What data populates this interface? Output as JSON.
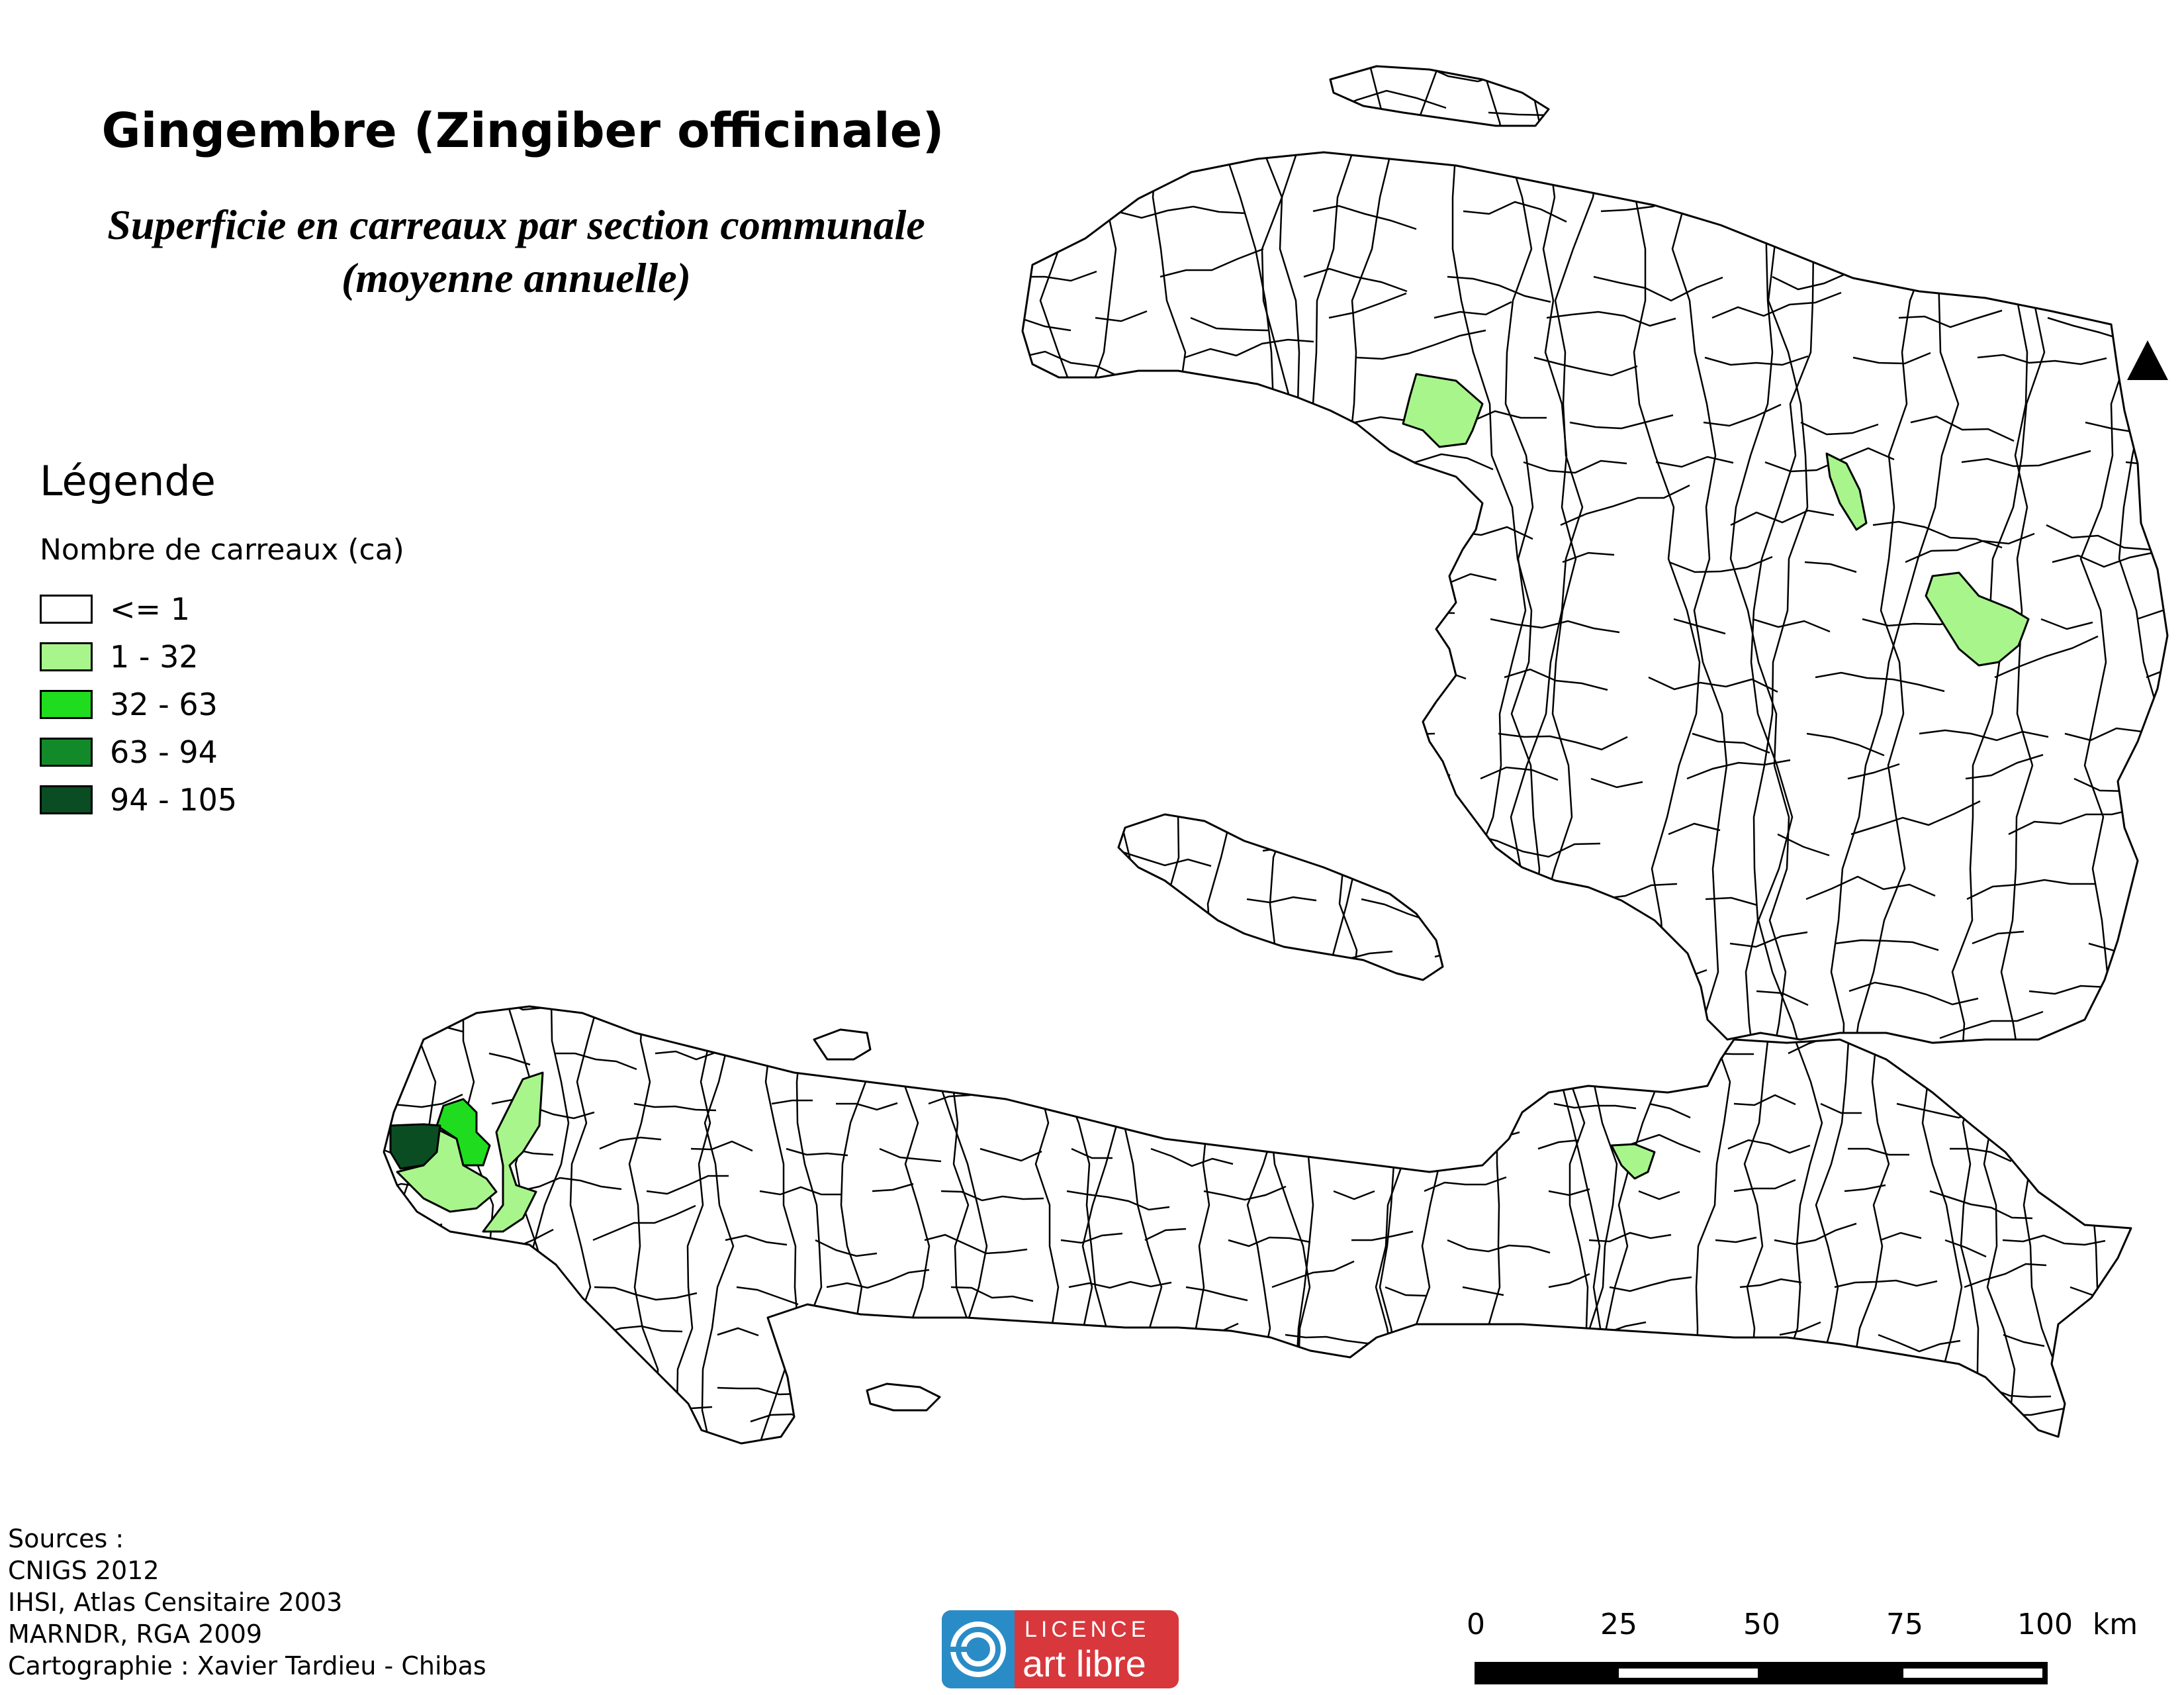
{
  "title": "Gingembre (Zingiber officinale)",
  "subtitle_line1": "Superficie en carreaux par section communale",
  "subtitle_line2": "(moyenne annuelle)",
  "legend": {
    "heading": "Légende",
    "subheading": "Nombre de carreaux (ca)",
    "classes": [
      {
        "label": "<= 1",
        "color": "#ffffff"
      },
      {
        "label": "1 - 32",
        "color": "#a8f58c"
      },
      {
        "label": "32 - 63",
        "color": "#1fdc1f"
      },
      {
        "label": "63 - 94",
        "color": "#138a2a"
      },
      {
        "label": "94 - 105",
        "color": "#0b4d23"
      }
    ]
  },
  "sources": {
    "lines": [
      "Sources :",
      "CNIGS 2012",
      "IHSI, Atlas Censitaire 2003",
      "MARNDR, RGA 2009",
      "Cartographie : Xavier Tardieu - Chibas"
    ]
  },
  "license": {
    "top": "LICENCE",
    "bottom": "art libre",
    "color": "#d8373c",
    "logo_color": "#2a8cc6"
  },
  "scale": {
    "ticks": [
      "0",
      "25",
      "50",
      "75",
      "100"
    ],
    "unit": "km"
  },
  "north_arrow": "north-arrow-icon",
  "map_colors": {
    "outline": "#000000",
    "class_1_32": "#a8f58c",
    "class_32_63": "#1fdc1f",
    "class_63_94": "#138a2a",
    "class_94_105": "#0b4d23"
  }
}
